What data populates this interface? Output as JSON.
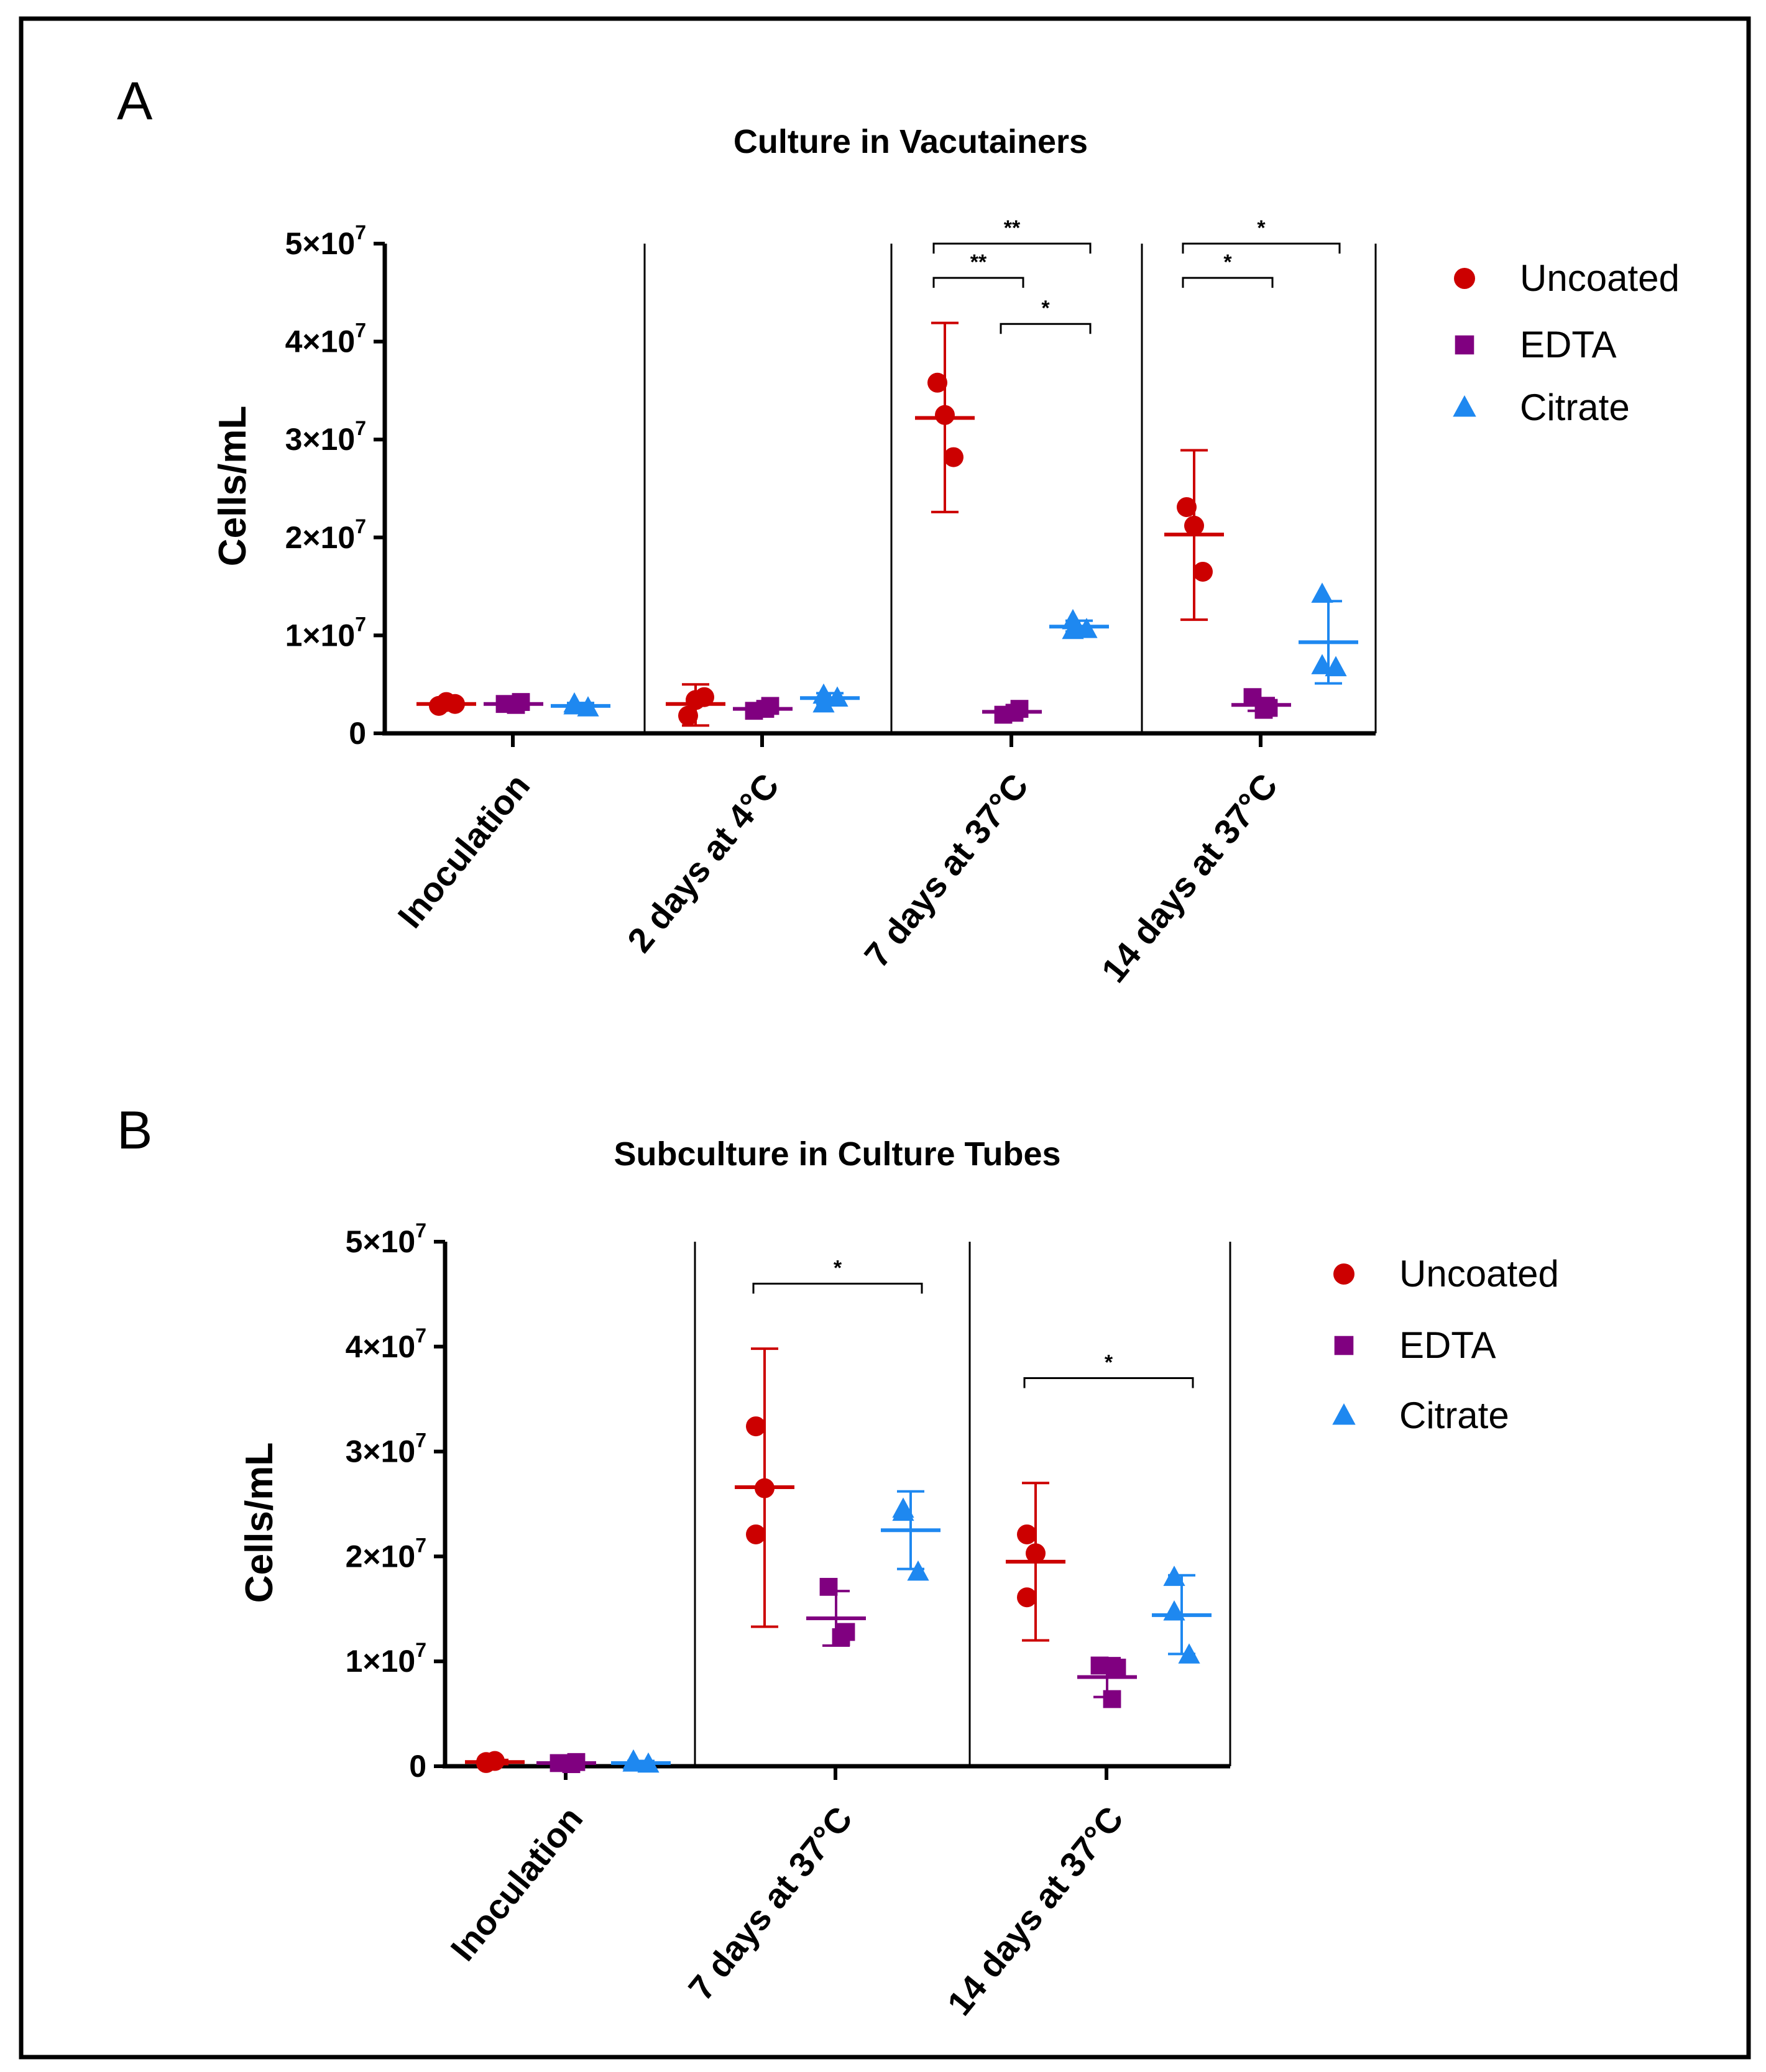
{
  "colors": {
    "Uncoated": "#cc0000",
    "EDTA": "#800080",
    "Citrate": "#1e88f0",
    "axis": "#000000",
    "border": "#000000"
  },
  "chart_data": [
    {
      "type": "scatter",
      "panel_label": "A",
      "title": "Culture in Vacutainers",
      "xlabel": "",
      "ylabel": "Cells/mL",
      "ylim": [
        0,
        50000000
      ],
      "yticks": [
        0,
        10000000,
        20000000,
        30000000,
        40000000,
        50000000
      ],
      "ytick_labels": [
        {
          "mantissa": "0",
          "exp": ""
        },
        {
          "mantissa": "1×10",
          "exp": "7"
        },
        {
          "mantissa": "2×10",
          "exp": "7"
        },
        {
          "mantissa": "3×10",
          "exp": "7"
        },
        {
          "mantissa": "4×10",
          "exp": "7"
        },
        {
          "mantissa": "5×10",
          "exp": "7"
        }
      ],
      "categories": [
        "Inoculation",
        "2 days at 4°C",
        "7 days at 37°C",
        "14 days at 37°C"
      ],
      "legend": [
        "Uncoated",
        "EDTA",
        "Citrate"
      ],
      "legend_position": "right",
      "series": [
        {
          "name": "Uncoated",
          "marker": "circle",
          "groups": [
            {
              "category": "Inoculation",
              "points": [
                2800000,
                3200000,
                3000000
              ],
              "mean": 3000000,
              "sd_low": 2600000,
              "sd_high": 3400000
            },
            {
              "category": "2 days at 4°C",
              "points": [
                1800000,
                3400000,
                3700000
              ],
              "mean": 3000000,
              "sd_low": 800000,
              "sd_high": 5000000
            },
            {
              "category": "7 days at 37°C",
              "points": [
                35800000,
                32500000,
                28200000
              ],
              "mean": 32200000,
              "sd_low": 22600000,
              "sd_high": 41900000
            },
            {
              "category": "14 days at 37°C",
              "points": [
                23100000,
                21200000,
                16500000
              ],
              "mean": 20300000,
              "sd_low": 11600000,
              "sd_high": 28900000
            }
          ]
        },
        {
          "name": "EDTA",
          "marker": "square",
          "groups": [
            {
              "category": "Inoculation",
              "points": [
                3000000,
                3200000,
                2900000
              ],
              "mean": 3000000,
              "sd_low": 2700000,
              "sd_high": 3300000
            },
            {
              "category": "2 days at 4°C",
              "points": [
                2300000,
                2800000,
                2500000
              ],
              "mean": 2500000,
              "sd_low": 2200000,
              "sd_high": 2900000
            },
            {
              "category": "7 days at 37°C",
              "points": [
                1900000,
                2500000,
                2100000
              ],
              "mean": 2200000,
              "sd_low": 1800000,
              "sd_high": 2600000
            },
            {
              "category": "14 days at 37°C",
              "points": [
                3700000,
                2600000,
                2400000
              ],
              "mean": 2900000,
              "sd_low": 2300000,
              "sd_high": 3600000
            }
          ]
        },
        {
          "name": "Citrate",
          "marker": "triangle",
          "groups": [
            {
              "category": "Inoculation",
              "points": [
                2800000,
                3000000,
                2600000
              ],
              "mean": 2800000,
              "sd_low": 2500000,
              "sd_high": 3100000
            },
            {
              "category": "2 days at 4°C",
              "points": [
                3000000,
                3900000,
                3600000
              ],
              "mean": 3600000,
              "sd_low": 3000000,
              "sd_high": 4100000
            },
            {
              "category": "7 days at 37°C",
              "points": [
                11500000,
                10500000,
                10600000
              ],
              "mean": 10900000,
              "sd_low": 10400000,
              "sd_high": 11500000
            },
            {
              "category": "14 days at 37°C",
              "points": [
                14200000,
                6900000,
                6700000
              ],
              "mean": 9300000,
              "sd_low": 5100000,
              "sd_high": 13500000
            }
          ]
        }
      ],
      "significance": [
        {
          "category": "7 days at 37°C",
          "from": "Uncoated",
          "to": "Citrate",
          "label": "**",
          "level": 50000000
        },
        {
          "category": "7 days at 37°C",
          "from": "Uncoated",
          "to": "EDTA",
          "label": "**",
          "level": 46500000
        },
        {
          "category": "7 days at 37°C",
          "from": "EDTA",
          "to": "Citrate",
          "label": "*",
          "level": 41800000
        },
        {
          "category": "14 days at 37°C",
          "from": "Uncoated",
          "to": "Citrate",
          "label": "*",
          "level": 50000000
        },
        {
          "category": "14 days at 37°C",
          "from": "Uncoated",
          "to": "EDTA",
          "label": "*",
          "level": 46500000
        }
      ]
    },
    {
      "type": "scatter",
      "panel_label": "B",
      "title": "Subculture in Culture Tubes",
      "xlabel": "",
      "ylabel": "Cells/mL",
      "ylim": [
        0,
        50000000
      ],
      "yticks": [
        0,
        10000000,
        20000000,
        30000000,
        40000000,
        50000000
      ],
      "ytick_labels": [
        {
          "mantissa": "0",
          "exp": ""
        },
        {
          "mantissa": "1×10",
          "exp": "7"
        },
        {
          "mantissa": "2×10",
          "exp": "7"
        },
        {
          "mantissa": "3×10",
          "exp": "7"
        },
        {
          "mantissa": "4×10",
          "exp": "7"
        },
        {
          "mantissa": "5×10",
          "exp": "7"
        }
      ],
      "categories": [
        "Inoculation",
        "7 days at 37°C",
        "14 days at 37°C"
      ],
      "legend": [
        "Uncoated",
        "EDTA",
        "Citrate"
      ],
      "legend_position": "right",
      "series": [
        {
          "name": "Uncoated",
          "marker": "circle",
          "groups": [
            {
              "category": "Inoculation",
              "points": [
                400000,
                500000,
                300000
              ],
              "mean": 400000,
              "sd_low": 200000,
              "sd_high": 600000
            },
            {
              "category": "7 days at 37°C",
              "points": [
                32400000,
                26500000,
                22100000
              ],
              "mean": 26600000,
              "sd_low": 13300000,
              "sd_high": 39800000
            },
            {
              "category": "14 days at 37°C",
              "points": [
                22100000,
                20300000,
                16100000
              ],
              "mean": 19500000,
              "sd_low": 12000000,
              "sd_high": 27000000
            }
          ]
        },
        {
          "name": "EDTA",
          "marker": "square",
          "groups": [
            {
              "category": "Inoculation",
              "points": [
                300000,
                400000,
                200000
              ],
              "mean": 300000,
              "sd_low": 100000,
              "sd_high": 500000
            },
            {
              "category": "7 days at 37°C",
              "points": [
                17100000,
                12800000,
                12300000
              ],
              "mean": 14100000,
              "sd_low": 11500000,
              "sd_high": 16700000
            },
            {
              "category": "14 days at 37°C",
              "points": [
                9600000,
                9400000,
                6400000
              ],
              "mean": 8500000,
              "sd_low": 6600000,
              "sd_high": 10300000
            }
          ]
        },
        {
          "name": "Citrate",
          "marker": "triangle",
          "groups": [
            {
              "category": "Inoculation",
              "points": [
                300000,
                500000,
                200000
              ],
              "mean": 300000,
              "sd_low": 100000,
              "sd_high": 500000
            },
            {
              "category": "7 days at 37°C",
              "points": [
                24200000,
                24500000,
                18500000
              ],
              "mean": 22500000,
              "sd_low": 18800000,
              "sd_high": 26200000
            },
            {
              "category": "14 days at 37°C",
              "points": [
                18000000,
                14700000,
                10600000
              ],
              "mean": 14400000,
              "sd_low": 10700000,
              "sd_high": 18200000
            }
          ]
        }
      ],
      "significance": [
        {
          "category": "7 days at 37°C",
          "from": "Uncoated",
          "to": "Citrate",
          "label": "*",
          "level": 46000000
        },
        {
          "category": "14 days at 37°C",
          "from": "Uncoated",
          "to": "Citrate",
          "label": "*",
          "level": 37000000
        }
      ]
    }
  ]
}
